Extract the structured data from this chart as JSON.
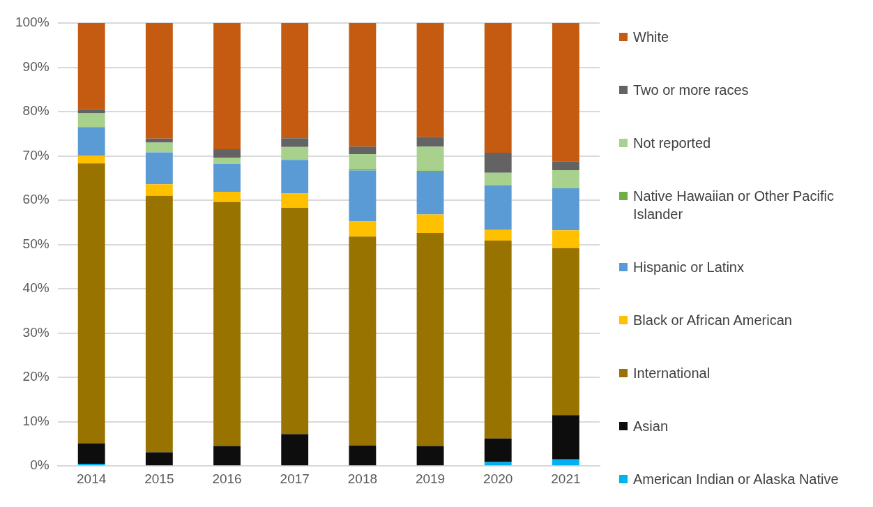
{
  "chart_data": {
    "type": "bar",
    "stacked": true,
    "categories": [
      "2014",
      "2015",
      "2016",
      "2017",
      "2018",
      "2019",
      "2020",
      "2021"
    ],
    "ylim": [
      0,
      100
    ],
    "yticks": [
      {
        "value": 0,
        "label": "0%"
      },
      {
        "value": 10,
        "label": "10%"
      },
      {
        "value": 20,
        "label": "20%"
      },
      {
        "value": 30,
        "label": "30%"
      },
      {
        "value": 40,
        "label": "40%"
      },
      {
        "value": 50,
        "label": "50%"
      },
      {
        "value": 60,
        "label": "60%"
      },
      {
        "value": 70,
        "label": "70%"
      },
      {
        "value": 80,
        "label": "80%"
      },
      {
        "value": 90,
        "label": "90%"
      },
      {
        "value": 100,
        "label": "100%"
      }
    ],
    "grid": "y",
    "legend": "right",
    "series": [
      {
        "name": "American Indian or Alaska Native",
        "color": "#00b0f0",
        "values": [
          0.5,
          0,
          0,
          0,
          0,
          0,
          0.9,
          1.5
        ]
      },
      {
        "name": "Asian",
        "color": "#0d0d0d",
        "values": [
          4.6,
          3.1,
          4.5,
          7.2,
          4.6,
          4.5,
          5.3,
          10.0
        ]
      },
      {
        "name": "International",
        "color": "#997300",
        "values": [
          63.2,
          57.9,
          55.1,
          51.1,
          47.2,
          48.1,
          44.7,
          37.7
        ]
      },
      {
        "name": "Black or African American",
        "color": "#ffc000",
        "values": [
          1.8,
          2.6,
          2.3,
          3.2,
          3.4,
          4.2,
          2.4,
          4.0
        ]
      },
      {
        "name": "Hispanic or Latinx",
        "color": "#5b9bd5",
        "values": [
          6.4,
          7.2,
          6.3,
          7.6,
          11.5,
          9.5,
          10.1,
          9.5
        ]
      },
      {
        "name": "Native Hawaiian or Other Pacific Islander",
        "color": "#70ad47",
        "values": [
          0,
          0,
          0,
          0,
          0.3,
          0.4,
          0,
          0
        ]
      },
      {
        "name": "Not reported",
        "color": "#a9d18e",
        "values": [
          3.1,
          2.2,
          1.4,
          2.9,
          3.4,
          5.4,
          2.8,
          4.1
        ]
      },
      {
        "name": "Two or more races",
        "color": "#636363",
        "values": [
          0.9,
          0.9,
          1.9,
          2.0,
          1.7,
          2.2,
          4.5,
          2.0
        ]
      },
      {
        "name": "White",
        "color": "#c55a11",
        "values": [
          19.5,
          26.1,
          28.5,
          26.0,
          27.9,
          25.7,
          29.3,
          31.2
        ]
      }
    ]
  }
}
